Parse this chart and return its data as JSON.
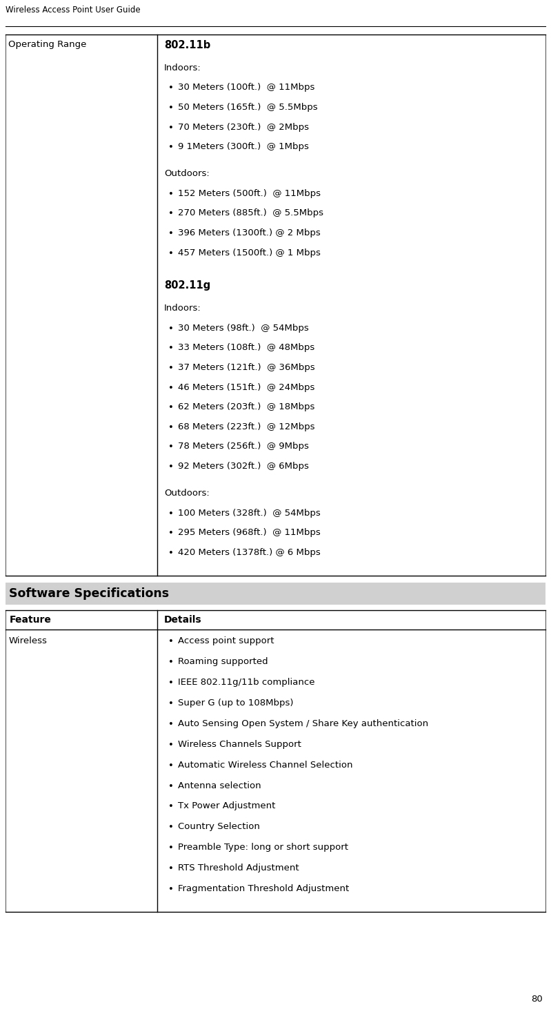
{
  "page_title": "Wireless Access Point User Guide",
  "page_number": "80",
  "bg_color": "#ffffff",
  "text_color": "#000000",
  "fig_width": 7.99,
  "fig_height": 14.69,
  "dpi": 100,
  "section1_left": "Operating Range",
  "b11b_bold": "802.11b",
  "b11b_indoors_label": "Indoors:",
  "b11b_indoors_bullets": [
    "30 Meters (100ft.)  @ 11Mbps",
    "50 Meters (165ft.)  @ 5.5Mbps",
    "70 Meters (230ft.)  @ 2Mbps",
    "9 1Meters (300ft.)  @ 1Mbps"
  ],
  "b11b_outdoors_label": "Outdoors:",
  "b11b_outdoors_bullets": [
    "152 Meters (500ft.)  @ 11Mbps",
    "270 Meters (885ft.)  @ 5.5Mbps",
    "396 Meters (1300ft.) @ 2 Mbps",
    "457 Meters (1500ft.) @ 1 Mbps"
  ],
  "b11g_bold": "802.11g",
  "b11g_indoors_label": "Indoors:",
  "b11g_indoors_bullets": [
    "30 Meters (98ft.)  @ 54Mbps",
    "33 Meters (108ft.)  @ 48Mbps",
    "37 Meters (121ft.)  @ 36Mbps",
    "46 Meters (151ft.)  @ 24Mbps",
    "62 Meters (203ft.)  @ 18Mbps",
    "68 Meters (223ft.)  @ 12Mbps",
    "78 Meters (256ft.)  @ 9Mbps",
    "92 Meters (302ft.)  @ 6Mbps"
  ],
  "b11g_outdoors_label": "Outdoors:",
  "b11g_outdoors_bullets": [
    "100 Meters (328ft.)  @ 54Mbps",
    "295 Meters (968ft.)  @ 11Mbps",
    "420 Meters (1378ft.) @ 6 Mbps"
  ],
  "section2_header": "Software Specifications",
  "col1_header": "Feature",
  "col2_header": "Details",
  "wireless_label": "Wireless",
  "wireless_bullets": [
    "Access point support",
    "Roaming supported",
    "IEEE 802.11g/11b compliance",
    "Super G (up to 108Mbps)",
    "Auto Sensing Open System / Share Key authentication",
    "Wireless Channels Support",
    "Automatic Wireless Channel Selection",
    "Antenna selection",
    "Tx Power Adjustment",
    "Country Selection",
    "Preamble Type: long or short support",
    "RTS Threshold Adjustment",
    "Fragmentation Threshold Adjustment"
  ]
}
